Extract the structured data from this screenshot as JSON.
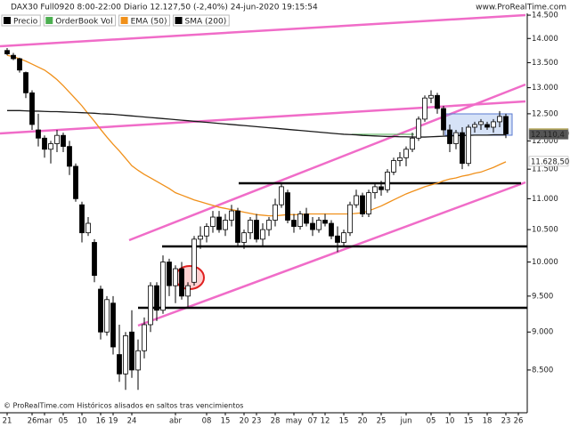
{
  "chart_data": {
    "type": "candlestick",
    "title": "DAX30 Full0920 8:00-22:00 Diario 12.127,50 (-2,40%) 24-jun-2020 19:15:54",
    "source": "www.ProRealTime.com",
    "footer": "© ProRealTime.com Históricos alisados en saltos tras vencimientos",
    "log_scale": true,
    "legend": [
      {
        "name": "Precio",
        "color": "#000000"
      },
      {
        "name": "OrderBook Vol",
        "color": "#4caf50"
      },
      {
        "name": "EMA (50)",
        "color": "#f0901a"
      },
      {
        "name": "SMA (200)",
        "color": "#000000"
      }
    ],
    "categories": [
      "21",
      null,
      null,
      null,
      "26",
      null,
      "mar",
      null,
      null,
      "05",
      null,
      null,
      "10",
      null,
      null,
      "16",
      null,
      "19",
      null,
      null,
      "24",
      null,
      null,
      null,
      null,
      null,
      null,
      "abr",
      null,
      null,
      null,
      null,
      "08",
      null,
      null,
      "15",
      null,
      null,
      "20",
      null,
      "23",
      null,
      null,
      "28",
      null,
      null,
      "may",
      null,
      null,
      "07",
      null,
      "12",
      null,
      null,
      "15",
      null,
      null,
      "20",
      null,
      null,
      "25",
      null,
      null,
      null,
      "jun",
      null,
      null,
      null,
      "05",
      null,
      null,
      "10",
      null,
      null,
      "15",
      null,
      null,
      "18",
      null,
      null,
      "23",
      null,
      "26"
    ],
    "ohlc": {
      "open": [
        13750,
        13650,
        13580,
        13300,
        12900,
        12200,
        12050,
        11850,
        11950,
        12100,
        11900,
        11550,
        10900,
        10450,
        10300,
        9600,
        9000,
        9400,
        8700,
        8450,
        9000,
        8500,
        8750,
        9100,
        9650,
        9300,
        10000,
        9650,
        9900,
        9500,
        9700,
        10350,
        10400,
        10550,
        10700,
        10500,
        10650,
        10800,
        10300,
        10450,
        10650,
        10350,
        10500,
        10650,
        10900,
        11100,
        10650,
        10550,
        10750,
        10600,
        10500,
        10650,
        10600,
        10400,
        10300,
        10450,
        10900,
        11050,
        10750,
        11100,
        11200,
        11150,
        11450,
        11650,
        11700,
        11850,
        12050,
        12400,
        12800,
        12850,
        12600,
        12200,
        11950,
        12150,
        11600,
        12250,
        12300,
        12300,
        12250,
        12350,
        12450,
        null,
        null
      ],
      "high": [
        13800,
        13700,
        13600,
        13320,
        12950,
        12500,
        12100,
        12000,
        12200,
        12150,
        12000,
        11600,
        10950,
        10700,
        10350,
        9650,
        9500,
        9500,
        9100,
        9000,
        9300,
        8900,
        9200,
        9700,
        9700,
        10100,
        10050,
        9950,
        10000,
        9700,
        10400,
        10550,
        10600,
        10800,
        10800,
        10750,
        10900,
        10850,
        10500,
        10700,
        10750,
        10600,
        10700,
        11000,
        11250,
        11150,
        10750,
        10800,
        10850,
        10700,
        10700,
        10750,
        10650,
        10550,
        10500,
        10950,
        11150,
        11100,
        11150,
        11250,
        11300,
        11500,
        11700,
        11800,
        11900,
        12150,
        12450,
        12850,
        12950,
        12900,
        12650,
        12300,
        12200,
        12250,
        12300,
        12350,
        12400,
        12350,
        12400,
        12550,
        12500,
        null,
        null
      ],
      "low": [
        13650,
        13550,
        13300,
        12800,
        12200,
        11900,
        11700,
        11600,
        11800,
        11800,
        11400,
        10950,
        10300,
        10400,
        9700,
        8900,
        8950,
        8700,
        8350,
        8250,
        8400,
        8250,
        8650,
        9000,
        9150,
        9250,
        9500,
        9400,
        9450,
        9350,
        9650,
        10200,
        10300,
        10450,
        10450,
        10400,
        10550,
        10250,
        10200,
        10350,
        10300,
        10250,
        10400,
        10550,
        10850,
        10600,
        10450,
        10500,
        10550,
        10400,
        10450,
        10550,
        10350,
        10150,
        10250,
        10400,
        10850,
        10700,
        10700,
        11000,
        11050,
        11100,
        11400,
        11550,
        11550,
        11800,
        12000,
        12350,
        12700,
        12500,
        12100,
        11800,
        11850,
        11500,
        11550,
        12150,
        12200,
        12200,
        12150,
        12250,
        12050,
        null,
        null
      ],
      "close": [
        13680,
        13580,
        13350,
        12900,
        12300,
        12050,
        11850,
        11950,
        12100,
        11900,
        11550,
        11000,
        10450,
        10600,
        9800,
        9000,
        9450,
        8800,
        8450,
        8950,
        8500,
        8750,
        9100,
        9650,
        9300,
        10000,
        9650,
        9900,
        9500,
        9650,
        10350,
        10400,
        10550,
        10700,
        10500,
        10650,
        10800,
        10300,
        10450,
        10650,
        10350,
        10500,
        10650,
        10900,
        11200,
        10650,
        10550,
        10750,
        10600,
        10500,
        10650,
        10600,
        10400,
        10300,
        10450,
        10900,
        11050,
        10750,
        11100,
        11200,
        11150,
        11450,
        11650,
        11700,
        11850,
        12050,
        12400,
        12800,
        12850,
        12600,
        12200,
        11950,
        12150,
        11600,
        12250,
        12300,
        12350,
        12250,
        12350,
        12450,
        12127.5,
        null,
        null
      ]
    },
    "series": [
      {
        "name": "EMA (50)",
        "color": "#f0901a",
        "values": [
          13650,
          13620,
          13580,
          13530,
          13470,
          13410,
          13350,
          13260,
          13160,
          13040,
          12910,
          12780,
          12650,
          12500,
          12360,
          12210,
          12070,
          11940,
          11820,
          11690,
          11560,
          11480,
          11410,
          11350,
          11290,
          11230,
          11170,
          11100,
          11060,
          11020,
          10980,
          10950,
          10920,
          10890,
          10860,
          10840,
          10820,
          10800,
          10780,
          10760,
          10740,
          10730,
          10720,
          10720,
          10730,
          10740,
          10740,
          10740,
          10750,
          10750,
          10750,
          10750,
          10750,
          10750,
          10750,
          10750,
          10760,
          10770,
          10800,
          10840,
          10880,
          10930,
          10980,
          11030,
          11080,
          11120,
          11160,
          11200,
          11230,
          11260,
          11300,
          11330,
          11350,
          11380,
          11400,
          11430,
          11450,
          11490,
          11530,
          11580,
          11628.5,
          null,
          null
        ]
      },
      {
        "name": "SMA (200)",
        "color": "#1a1a1a",
        "values": [
          12560,
          12560,
          12560,
          12555,
          12550,
          12550,
          12545,
          12540,
          12540,
          12535,
          12530,
          12525,
          12520,
          12515,
          12510,
          12500,
          12495,
          12490,
          12480,
          12470,
          12460,
          12450,
          12440,
          12430,
          12420,
          12410,
          12400,
          12390,
          12380,
          12370,
          12360,
          12350,
          12340,
          12330,
          12320,
          12310,
          12300,
          12290,
          12280,
          12270,
          12260,
          12250,
          12240,
          12230,
          12220,
          12210,
          12200,
          12190,
          12180,
          12170,
          12160,
          12150,
          12140,
          12130,
          12120,
          12115,
          12110,
          12100,
          12095,
          12090,
          12085,
          12080,
          12080,
          12075,
          12075,
          12070,
          12070,
          12070,
          12075,
          12080,
          12085,
          12090,
          12095,
          12100,
          12100,
          12105,
          12105,
          12105,
          12110,
          12110,
          12110.4,
          null,
          null
        ]
      }
    ],
    "price_tags": [
      {
        "value": 12127.5,
        "label": "12.127,50",
        "color": "#f5d000",
        "text_color": "#000000"
      },
      {
        "value": 12110.4,
        "label": "12.110,4",
        "color": "#555555",
        "text_color": "#ffffff"
      },
      {
        "value": 11628.5,
        "label": "11.628,50",
        "color": "#ffffff",
        "text_color": "#f0901a"
      }
    ],
    "ylim": [
      7970,
      14540
    ],
    "yticks": [
      {
        "value": 8500,
        "label": "8.500"
      },
      {
        "value": 9000,
        "label": "9.000"
      },
      {
        "value": 9500,
        "label": "9.500"
      },
      {
        "value": 10000,
        "label": "10.000"
      },
      {
        "value": 10500,
        "label": "10.500"
      },
      {
        "value": 11000,
        "label": "11.000"
      },
      {
        "value": 11500,
        "label": "11.500"
      },
      {
        "value": 12000,
        "label": "12.000"
      },
      {
        "value": 12500,
        "label": "12.500"
      },
      {
        "value": 13000,
        "label": "13.000"
      },
      {
        "value": 13500,
        "label": "13.500"
      },
      {
        "value": 14000,
        "label": "14.000"
      },
      {
        "value": 14500,
        "label": "14.500"
      }
    ]
  }
}
